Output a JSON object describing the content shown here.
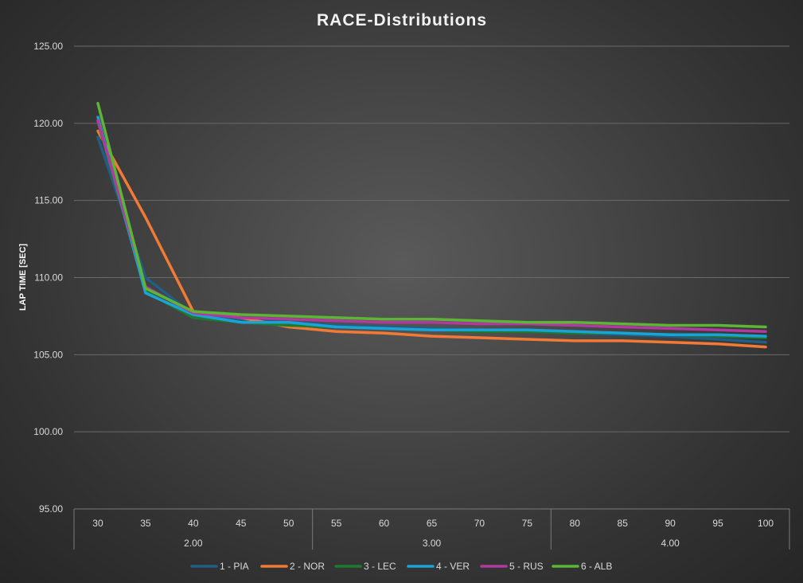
{
  "chart_data": {
    "type": "line",
    "title": "RACE-Distributions",
    "ylabel": "LAP TIME [SEC]",
    "xlabel": "",
    "ylim": [
      95,
      125
    ],
    "yticks": [
      "95.00",
      "100.00",
      "105.00",
      "110.00",
      "115.00",
      "120.00",
      "125.00"
    ],
    "categories": [
      "30",
      "35",
      "40",
      "45",
      "50",
      "55",
      "60",
      "65",
      "70",
      "75",
      "80",
      "85",
      "90",
      "95",
      "100"
    ],
    "groups": [
      {
        "label": "2.00",
        "span": 5
      },
      {
        "label": "3.00",
        "span": 5
      },
      {
        "label": "4.00",
        "span": 5
      }
    ],
    "grid": true,
    "legend": "bottom",
    "series": [
      {
        "name": "1 - PIA",
        "color": "#1f5f85",
        "values": [
          119.1,
          110.0,
          107.6,
          107.2,
          107.1,
          106.9,
          106.8,
          106.7,
          106.6,
          106.5,
          106.4,
          106.3,
          106.2,
          106.0,
          105.8
        ]
      },
      {
        "name": "2 - NOR",
        "color": "#f07a36",
        "values": [
          119.5,
          113.9,
          107.8,
          107.4,
          106.8,
          106.5,
          106.4,
          106.2,
          106.1,
          106.0,
          105.9,
          105.9,
          105.8,
          105.7,
          105.5
        ]
      },
      {
        "name": "3 - LEC",
        "color": "#1e7a2e",
        "values": [
          120.1,
          109.1,
          107.4,
          107.1,
          106.9,
          106.8,
          106.7,
          106.6,
          106.5,
          106.5,
          106.4,
          106.4,
          106.3,
          106.2,
          106.1
        ]
      },
      {
        "name": "4 - VER",
        "color": "#1aa3d9",
        "values": [
          120.4,
          109.0,
          107.6,
          107.1,
          107.1,
          106.8,
          106.7,
          106.6,
          106.6,
          106.6,
          106.5,
          106.4,
          106.3,
          106.3,
          106.2
        ]
      },
      {
        "name": "5 - RUS",
        "color": "#b03aa0",
        "values": [
          120.2,
          109.4,
          107.7,
          107.4,
          107.3,
          107.2,
          107.1,
          107.1,
          107.0,
          107.0,
          106.9,
          106.8,
          106.7,
          106.6,
          106.5
        ]
      },
      {
        "name": "6 - ALB",
        "color": "#5cb535",
        "values": [
          121.3,
          109.3,
          107.8,
          107.6,
          107.5,
          107.4,
          107.3,
          107.3,
          107.2,
          107.1,
          107.1,
          107.0,
          106.9,
          106.9,
          106.8
        ]
      }
    ]
  }
}
